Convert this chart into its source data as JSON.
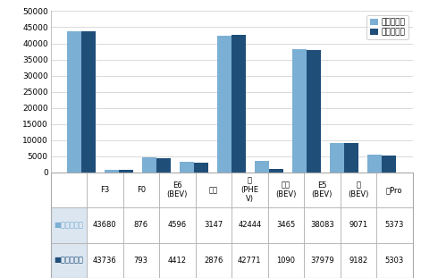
{
  "categories": [
    "F3",
    "F0",
    "E6\n(BEV)",
    "速锐",
    "秦\n(PHE\nV)",
    "腾势\n(BEV)",
    "E5\n(BEV)",
    "秦\n(BEV)",
    "秦Pro"
  ],
  "production": [
    43680,
    876,
    4596,
    3147,
    42444,
    3465,
    38083,
    9071,
    5373
  ],
  "sales": [
    43736,
    793,
    4412,
    2876,
    42771,
    1090,
    37979,
    9182,
    5303
  ],
  "bar_color_production": "#7BAFD4",
  "bar_color_sales": "#1F4E79",
  "legend_production": "产量（辆）",
  "legend_sales": "销量（辆）",
  "ylim": [
    0,
    50000
  ],
  "yticks": [
    0,
    5000,
    10000,
    15000,
    20000,
    25000,
    30000,
    35000,
    40000,
    45000,
    50000
  ],
  "table_header": [
    "",
    "F3",
    "F0",
    "E6\n(BEV)",
    "速锐",
    "秦\n(PHE\nV)",
    "腾势\n(BEV)",
    "E5\n(BEV)",
    "秦\n(BEV)",
    "秦Pro"
  ],
  "table_production": [
    "43680",
    "876",
    "4596",
    "3147",
    "42444",
    "3465",
    "38083",
    "9071",
    "5373"
  ],
  "table_sales": [
    "43736",
    "793",
    "4412",
    "2876",
    "42771",
    "1090",
    "37979",
    "9182",
    "5303"
  ],
  "background_color": "#ffffff",
  "grid_color": "#cccccc",
  "border_color": "#aaaaaa"
}
